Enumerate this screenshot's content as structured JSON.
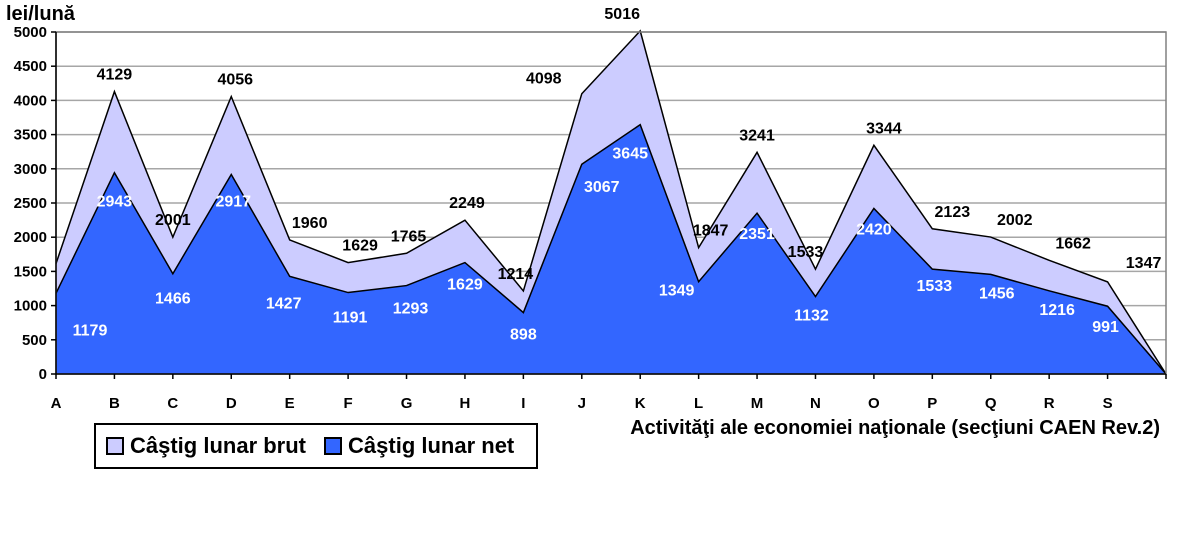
{
  "chart_data": {
    "type": "area",
    "title": "",
    "ylabel": "lei/lună",
    "xlabel": "Activităţi ale economiei naţionale (secţiuni CAEN Rev.2)",
    "ylim": [
      0,
      5000
    ],
    "yticks": [
      0,
      500,
      1000,
      1500,
      2000,
      2500,
      3000,
      3500,
      4000,
      4500,
      5000
    ],
    "grid": true,
    "legend_position": "bottom-left",
    "categories": [
      "A",
      "B",
      "C",
      "D",
      "E",
      "F",
      "G",
      "H",
      "I",
      "J",
      "K",
      "L",
      "M",
      "N",
      "O",
      "P",
      "Q",
      "R",
      "S"
    ],
    "series": [
      {
        "name": "Câştig lunar brut",
        "color": "#ccccff",
        "values": [
          1614,
          4129,
          2001,
          4056,
          1960,
          1629,
          1765,
          2249,
          1214,
          4098,
          5016,
          1847,
          3241,
          1533,
          3344,
          2123,
          2002,
          1662,
          1347
        ]
      },
      {
        "name": "Câştig lunar net",
        "color": "#3366ff",
        "values": [
          1179,
          2943,
          1466,
          2917,
          1427,
          1191,
          1293,
          1629,
          898,
          3067,
          3645,
          1349,
          2351,
          1132,
          2420,
          1533,
          1456,
          1216,
          991
        ]
      }
    ]
  }
}
